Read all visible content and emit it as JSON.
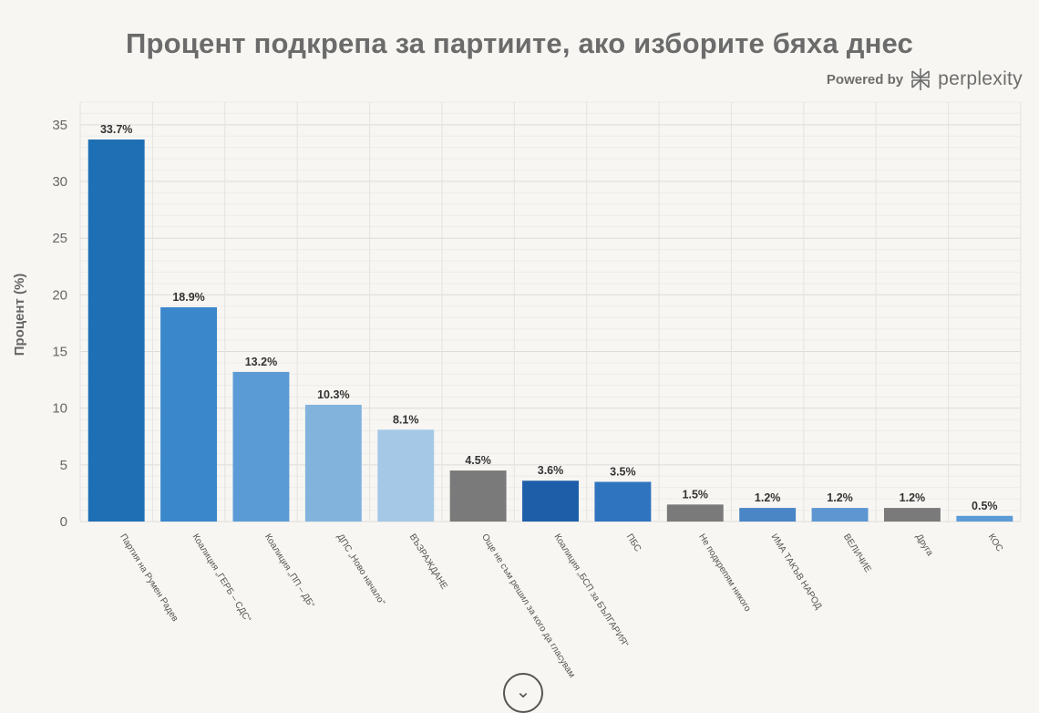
{
  "header": {
    "title": "Процент подкрепа за партиите, ако изборите бяха днес",
    "powered_by": "Powered by",
    "brand": "perplexity"
  },
  "chart_data": {
    "type": "bar",
    "title": "Процент подкрепа за партиите, ако изборите бяха днес",
    "xlabel": "",
    "ylabel": "Процент (%)",
    "ylim": [
      0,
      37
    ],
    "yticks": [
      0,
      5,
      10,
      15,
      20,
      25,
      30,
      35
    ],
    "grid": true,
    "categories": [
      "Партия на Румен Радев",
      "Коалиция „ГЕРБ – СДС“",
      "Коалиция „ПП – ДБ“",
      "ДПС „Ново начало“",
      "ВЪЗРАЖДАНЕ",
      "Още не съм решил за кого да гласувам",
      "Коалиция „БСП за БЪЛГАРИЯ“",
      "ПБС",
      "Не подкрепям никого",
      "ИМА ТАКЪВ НАРОД",
      "ВЕЛИЧИЕ",
      "Друга",
      "КОС"
    ],
    "values": [
      33.7,
      18.9,
      13.2,
      10.3,
      8.1,
      4.5,
      3.6,
      3.5,
      1.5,
      1.2,
      1.2,
      1.2,
      0.5
    ],
    "value_labels": [
      "33.7%",
      "18.9%",
      "13.2%",
      "10.3%",
      "8.1%",
      "4.5%",
      "3.6%",
      "3.5%",
      "1.5%",
      "1.2%",
      "1.2%",
      "1.2%",
      "0.5%"
    ],
    "colors": [
      "#1f6fb5",
      "#3a87cc",
      "#5b9bd5",
      "#82b3dd",
      "#a5c8e6",
      "#7a7a7a",
      "#1e5ea8",
      "#2f74bf",
      "#7a7a7a",
      "#4a85c6",
      "#5e96d2",
      "#7a7a7a",
      "#5b9bd5"
    ]
  }
}
